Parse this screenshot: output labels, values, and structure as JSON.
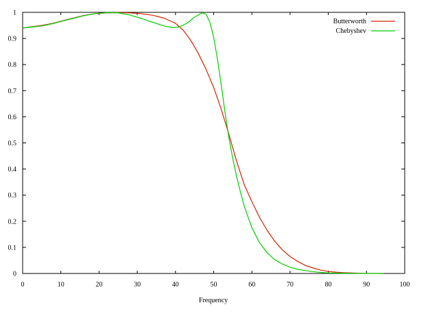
{
  "chart_data": {
    "type": "line",
    "xlabel": "Frequency",
    "ylabel": "",
    "title": "",
    "xlim": [
      0,
      100
    ],
    "ylim": [
      0,
      1
    ],
    "x_ticks": [
      "0",
      "10",
      "20",
      "30",
      "40",
      "50",
      "60",
      "70",
      "80",
      "90",
      "100"
    ],
    "y_ticks": [
      "0",
      "0.1",
      "0.2",
      "0.3",
      "0.4",
      "0.5",
      "0.6",
      "0.7",
      "0.8",
      "0.9",
      "1"
    ],
    "grid": false,
    "legend_position": "top-right",
    "series": [
      {
        "name": "Butterworth",
        "color": "#cc2200",
        "points": [
          [
            0,
            0.94
          ],
          [
            2,
            0.944
          ],
          [
            5,
            0.95
          ],
          [
            8,
            0.958
          ],
          [
            10,
            0.966
          ],
          [
            13,
            0.977
          ],
          [
            16,
            0.988
          ],
          [
            19,
            0.995
          ],
          [
            22,
            0.998
          ],
          [
            25,
            0.999
          ],
          [
            28,
            0.998
          ],
          [
            31,
            0.995
          ],
          [
            34,
            0.989
          ],
          [
            37,
            0.978
          ],
          [
            40,
            0.958
          ],
          [
            42,
            0.932
          ],
          [
            44,
            0.893
          ],
          [
            46,
            0.842
          ],
          [
            48,
            0.782
          ],
          [
            50,
            0.712
          ],
          [
            52,
            0.628
          ],
          [
            54,
            0.532
          ],
          [
            56,
            0.43
          ],
          [
            58,
            0.34
          ],
          [
            60,
            0.275
          ],
          [
            62,
            0.215
          ],
          [
            64,
            0.165
          ],
          [
            66,
            0.123
          ],
          [
            68,
            0.09
          ],
          [
            70,
            0.065
          ],
          [
            72,
            0.046
          ],
          [
            74,
            0.031
          ],
          [
            76,
            0.021
          ],
          [
            78,
            0.013
          ],
          [
            80,
            0.008
          ],
          [
            82,
            0.005
          ],
          [
            84,
            0.003
          ],
          [
            86,
            0.002
          ],
          [
            88,
            0.001
          ],
          [
            90,
            0.0005
          ],
          [
            92,
            0.0002
          ],
          [
            94.5,
            0
          ]
        ]
      },
      {
        "name": "Chebyshev",
        "color": "#00cc00",
        "points": [
          [
            0,
            0.94
          ],
          [
            2,
            0.943
          ],
          [
            5,
            0.948
          ],
          [
            8,
            0.957
          ],
          [
            10,
            0.965
          ],
          [
            13,
            0.976
          ],
          [
            16,
            0.987
          ],
          [
            19,
            0.995
          ],
          [
            22,
            0.999
          ],
          [
            25,
            0.998
          ],
          [
            28,
            0.99
          ],
          [
            31,
            0.977
          ],
          [
            34,
            0.962
          ],
          [
            37,
            0.948
          ],
          [
            39,
            0.942
          ],
          [
            41,
            0.944
          ],
          [
            43,
            0.958
          ],
          [
            45,
            0.982
          ],
          [
            47,
            0.998
          ],
          [
            48,
            0.993
          ],
          [
            49,
            0.962
          ],
          [
            50,
            0.905
          ],
          [
            51,
            0.82
          ],
          [
            52,
            0.72
          ],
          [
            53,
            0.614
          ],
          [
            54,
            0.518
          ],
          [
            55,
            0.44
          ],
          [
            56,
            0.372
          ],
          [
            57,
            0.312
          ],
          [
            58,
            0.258
          ],
          [
            60,
            0.175
          ],
          [
            62,
            0.118
          ],
          [
            64,
            0.079
          ],
          [
            66,
            0.053
          ],
          [
            68,
            0.036
          ],
          [
            70,
            0.024
          ],
          [
            72,
            0.016
          ],
          [
            74,
            0.011
          ],
          [
            76,
            0.007
          ],
          [
            78,
            0.004
          ],
          [
            80,
            0.002
          ],
          [
            84,
            0.001
          ],
          [
            88,
            0.0003
          ],
          [
            94.5,
            0
          ]
        ]
      }
    ]
  }
}
